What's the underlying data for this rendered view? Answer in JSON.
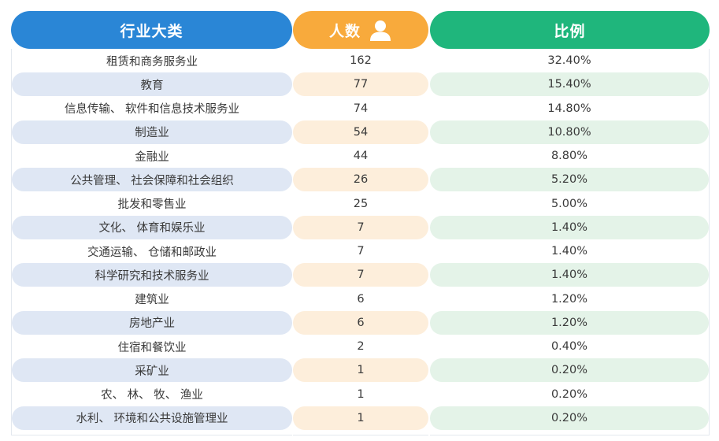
{
  "header": {
    "industry": "行业大类",
    "count": "人数",
    "ratio": "比例"
  },
  "icons": {
    "count_header_icon": "person-icon"
  },
  "colors": {
    "industry_header": "#2a86d6",
    "count_header": "#f8aa3c",
    "ratio_header": "#1fb67c"
  },
  "chart_data": {
    "type": "table",
    "columns": [
      "行业大类",
      "人数",
      "比例"
    ],
    "rows": [
      {
        "industry": "租赁和商务服务业",
        "count": "162",
        "ratio": "32.40%"
      },
      {
        "industry": "教育",
        "count": "77",
        "ratio": "15.40%"
      },
      {
        "industry": "信息传输、 软件和信息技术服务业",
        "count": "74",
        "ratio": "14.80%"
      },
      {
        "industry": "制造业",
        "count": "54",
        "ratio": "10.80%"
      },
      {
        "industry": "金融业",
        "count": "44",
        "ratio": "8.80%"
      },
      {
        "industry": "公共管理、 社会保障和社会组织",
        "count": "26",
        "ratio": "5.20%"
      },
      {
        "industry": "批发和零售业",
        "count": "25",
        "ratio": "5.00%"
      },
      {
        "industry": "文化、 体育和娱乐业",
        "count": "7",
        "ratio": "1.40%"
      },
      {
        "industry": "交通运输、 仓储和邮政业",
        "count": "7",
        "ratio": "1.40%"
      },
      {
        "industry": "科学研究和技术服务业",
        "count": "7",
        "ratio": "1.40%"
      },
      {
        "industry": "建筑业",
        "count": "6",
        "ratio": "1.20%"
      },
      {
        "industry": "房地产业",
        "count": "6",
        "ratio": "1.20%"
      },
      {
        "industry": "住宿和餐饮业",
        "count": "2",
        "ratio": "0.40%"
      },
      {
        "industry": "采矿业",
        "count": "1",
        "ratio": "0.20%"
      },
      {
        "industry": "农、 林、 牧、 渔业",
        "count": "1",
        "ratio": "0.20%"
      },
      {
        "industry": "水利、 环境和公共设施管理业",
        "count": "1",
        "ratio": "0.20%"
      }
    ]
  }
}
